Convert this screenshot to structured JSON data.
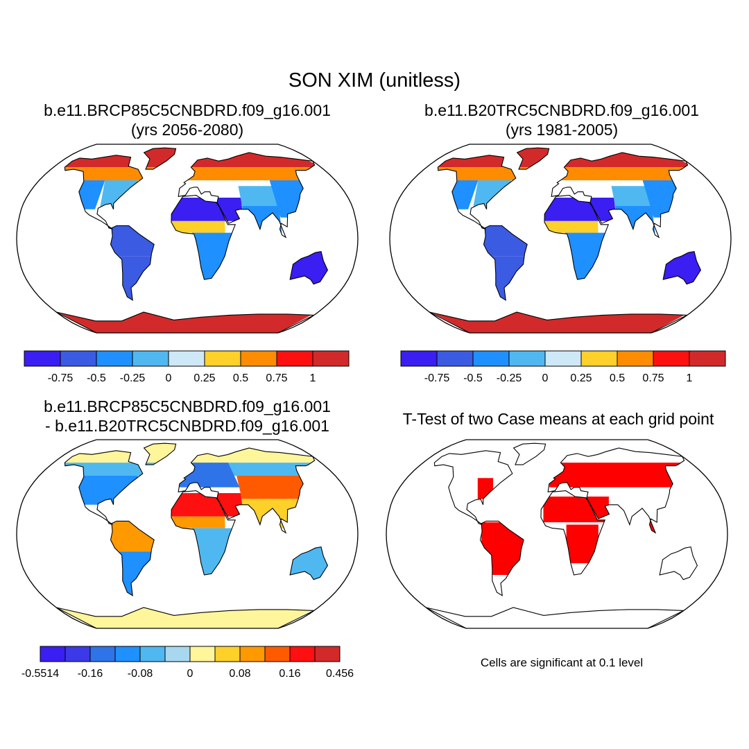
{
  "figure_title": "SON XIM (unitless)",
  "footnote": "Cells are significant at 0.1 level",
  "colors": {
    "scale_main": [
      "#3a1ef2",
      "#3b5be3",
      "#1e90ff",
      "#4fb8f0",
      "#cfe8f7",
      "#fdd02a",
      "#ff8c00",
      "#ff1010",
      "#d22a2a"
    ],
    "scale_diff": [
      "#3a1ef2",
      "#3b39e8",
      "#2e74e8",
      "#1e90ff",
      "#4fb8f0",
      "#a8d8f0",
      "#fff59a",
      "#fdd02a",
      "#ff9900",
      "#ff5a00",
      "#ff1010",
      "#d22a2a"
    ],
    "significant": "#ff0000"
  },
  "chart_data": [
    {
      "type": "heatmap",
      "title_line1": "b.e11.BRCP85C5CNBDRD.f09_g16.001",
      "title_line2": "(yrs 2056-2080)",
      "projection": "Robinson (global)",
      "colorbar": {
        "tick_labels": [
          "-0.75",
          "-0.5",
          "-0.25",
          "0",
          "0.25",
          "0.5",
          "0.75",
          "1"
        ],
        "levels": [
          -0.75,
          -0.5,
          -0.25,
          0,
          0.25,
          0.5,
          0.75,
          1
        ]
      }
    },
    {
      "type": "heatmap",
      "title_line1": "b.e11.B20TRC5CNBDRD.f09_g16.001",
      "title_line2": "(yrs 1981-2005)",
      "projection": "Robinson (global)",
      "colorbar": {
        "tick_labels": [
          "-0.75",
          "-0.5",
          "-0.25",
          "0",
          "0.25",
          "0.5",
          "0.75",
          "1"
        ],
        "levels": [
          -0.75,
          -0.5,
          -0.25,
          0,
          0.25,
          0.5,
          0.75,
          1
        ]
      }
    },
    {
      "type": "heatmap",
      "title_line1": "b.e11.BRCP85C5CNBDRD.f09_g16.001",
      "title_line2": "- b.e11.B20TRC5CNBDRD.f09_g16.001",
      "projection": "Robinson (global)",
      "colorbar": {
        "tick_labels": [
          "-0.5514",
          "-0.16",
          "-0.08",
          "0",
          "0.08",
          "0.16",
          "0.456"
        ],
        "levels": [
          -0.5514,
          -0.16,
          -0.08,
          0,
          0.08,
          0.16,
          0.456
        ]
      }
    },
    {
      "type": "heatmap",
      "title_line1": "T-Test of two Case means at each grid point",
      "projection": "Robinson (global)",
      "significance_level": 0.1
    }
  ]
}
